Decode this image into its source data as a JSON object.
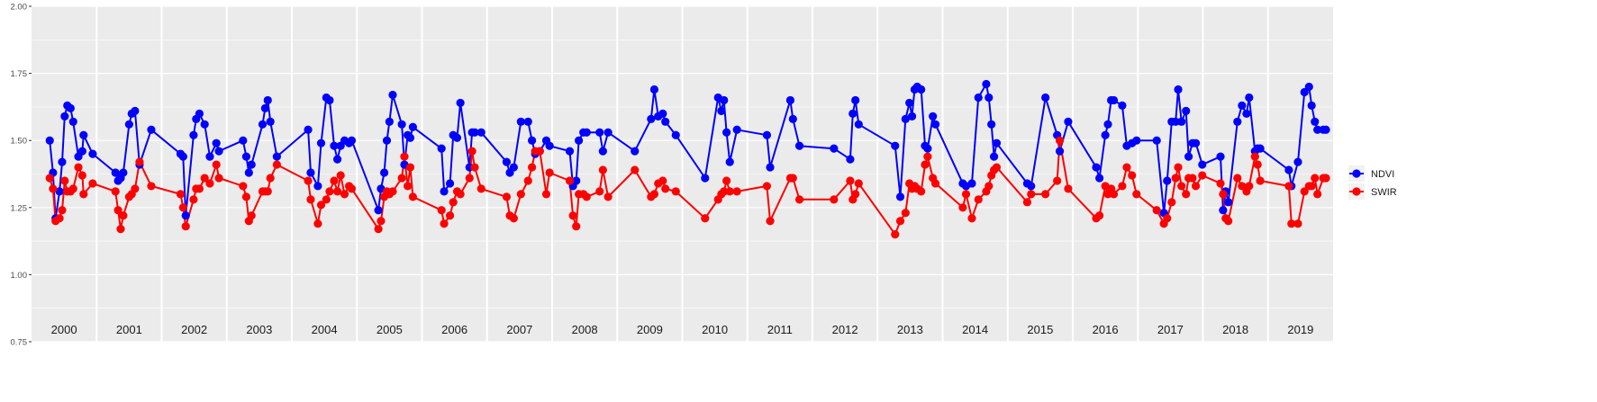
{
  "chart_data": {
    "type": "line",
    "title": "",
    "xlabel": "",
    "ylabel": "",
    "ylim": [
      0.75,
      2.0
    ],
    "yticks": [
      "0.75",
      "1.00",
      "1.25",
      "1.50",
      "1.75",
      "2.00"
    ],
    "years": [
      "2000",
      "2001",
      "2002",
      "2003",
      "2004",
      "2005",
      "2006",
      "2007",
      "2008",
      "2009",
      "2010",
      "2011",
      "2012",
      "2013",
      "2014",
      "2015",
      "2016",
      "2017",
      "2018",
      "2019"
    ],
    "grid": true,
    "legend_position": "right",
    "dates": [
      2000.28,
      2000.33,
      2000.37,
      2000.43,
      2000.47,
      2000.51,
      2000.55,
      2000.6,
      2000.64,
      2000.72,
      2000.78,
      2000.8,
      2000.94,
      2001.29,
      2001.33,
      2001.37,
      2001.41,
      2001.5,
      2001.54,
      2001.59,
      2001.66,
      2001.84,
      2002.29,
      2002.33,
      2002.37,
      2002.49,
      2002.53,
      2002.58,
      2002.66,
      2002.74,
      2002.84,
      2002.88,
      2003.25,
      2003.3,
      2003.34,
      2003.38,
      2003.55,
      2003.59,
      2003.63,
      2003.67,
      2003.77,
      2004.25,
      2004.29,
      2004.4,
      2004.45,
      2004.53,
      2004.58,
      2004.65,
      2004.7,
      2004.75,
      2004.81,
      2004.88,
      2004.92,
      2005.33,
      2005.37,
      2005.42,
      2005.46,
      2005.5,
      2005.55,
      2005.69,
      2005.73,
      2005.78,
      2005.82,
      2005.86,
      2006.3,
      2006.34,
      2006.43,
      2006.48,
      2006.54,
      2006.59,
      2006.73,
      2006.77,
      2006.81,
      2006.91,
      2007.3,
      2007.35,
      2007.41,
      2007.52,
      2007.63,
      2007.69,
      2007.74,
      2007.81,
      2007.91,
      2007.96,
      2008.27,
      2008.32,
      2008.37,
      2008.41,
      2008.48,
      2008.53,
      2008.73,
      2008.78,
      2008.86,
      2009.27,
      2009.52,
      2009.57,
      2009.63,
      2009.7,
      2009.74,
      2009.9,
      2010.35,
      2010.55,
      2010.6,
      2010.64,
      2010.68,
      2010.73,
      2010.84,
      2011.3,
      2011.35,
      2011.66,
      2011.7,
      2011.8,
      2012.33,
      2012.58,
      2012.62,
      2012.66,
      2012.71,
      2013.27,
      2013.35,
      2013.43,
      2013.49,
      2013.53,
      2013.57,
      2013.61,
      2013.67,
      2013.73,
      2013.77,
      2013.85,
      2013.89,
      2014.31,
      2014.36,
      2014.45,
      2014.55,
      2014.67,
      2014.71,
      2014.75,
      2014.79,
      2014.83,
      2015.3,
      2015.36,
      2015.58,
      2015.76,
      2015.8,
      2015.93,
      2016.36,
      2016.41,
      2016.5,
      2016.54,
      2016.59,
      2016.63,
      2016.76,
      2016.83,
      2016.91,
      2016.98,
      2017.29,
      2017.4,
      2017.45,
      2017.52,
      2017.58,
      2017.62,
      2017.67,
      2017.74,
      2017.78,
      2017.84,
      2017.89,
      2017.99,
      2018.27,
      2018.31,
      2018.35,
      2018.39,
      2018.53,
      2018.6,
      2018.67,
      2018.71,
      2018.8,
      2018.84,
      2018.88,
      2019.32,
      2019.36,
      2019.46,
      2019.56,
      2019.63,
      2019.67,
      2019.72,
      2019.76,
      2019.85,
      2019.89
    ],
    "series": [
      {
        "name": "NDVI",
        "color": "#0000FF",
        "values": [
          1.5,
          1.38,
          1.21,
          1.31,
          1.42,
          1.59,
          1.63,
          1.62,
          1.57,
          1.44,
          1.46,
          1.52,
          1.45,
          1.38,
          1.35,
          1.36,
          1.38,
          1.56,
          1.6,
          1.61,
          1.41,
          1.54,
          1.45,
          1.44,
          1.22,
          1.52,
          1.58,
          1.6,
          1.56,
          1.44,
          1.49,
          1.46,
          1.5,
          1.44,
          1.38,
          1.41,
          1.56,
          1.62,
          1.65,
          1.57,
          1.44,
          1.54,
          1.38,
          1.33,
          1.49,
          1.66,
          1.65,
          1.48,
          1.43,
          1.48,
          1.5,
          1.49,
          1.5,
          1.24,
          1.32,
          1.38,
          1.5,
          1.57,
          1.67,
          1.56,
          1.41,
          1.52,
          1.51,
          1.55,
          1.47,
          1.31,
          1.34,
          1.52,
          1.51,
          1.64,
          1.4,
          1.53,
          1.53,
          1.53,
          1.42,
          1.38,
          1.4,
          1.57,
          1.57,
          1.5,
          1.45,
          1.46,
          1.5,
          1.48,
          1.46,
          1.33,
          1.35,
          1.5,
          1.53,
          1.53,
          1.53,
          1.46,
          1.53,
          1.46,
          1.58,
          1.69,
          1.59,
          1.6,
          1.57,
          1.52,
          1.36,
          1.66,
          1.61,
          1.65,
          1.53,
          1.42,
          1.54,
          1.52,
          1.4,
          1.65,
          1.58,
          1.48,
          1.47,
          1.43,
          1.6,
          1.65,
          1.56,
          1.48,
          1.29,
          1.58,
          1.64,
          1.59,
          1.69,
          1.7,
          1.69,
          1.48,
          1.47,
          1.59,
          1.56,
          1.34,
          1.33,
          1.34,
          1.66,
          1.71,
          1.66,
          1.56,
          1.44,
          1.49,
          1.34,
          1.33,
          1.66,
          1.52,
          1.46,
          1.57,
          1.4,
          1.36,
          1.52,
          1.56,
          1.65,
          1.65,
          1.63,
          1.48,
          1.49,
          1.5,
          1.5,
          1.23,
          1.35,
          1.57,
          1.57,
          1.69,
          1.57,
          1.61,
          1.44,
          1.49,
          1.49,
          1.41,
          1.44,
          1.24,
          1.31,
          1.27,
          1.57,
          1.63,
          1.6,
          1.66,
          1.46,
          1.47,
          1.47,
          1.39,
          1.33,
          1.42,
          1.68,
          1.7,
          1.63,
          1.57,
          1.54,
          1.54,
          1.54
        ]
      },
      {
        "name": "SWIR",
        "color": "#FF0000",
        "values": [
          1.36,
          1.32,
          1.2,
          1.21,
          1.24,
          1.35,
          1.31,
          1.31,
          1.32,
          1.4,
          1.37,
          1.3,
          1.34,
          1.31,
          1.24,
          1.17,
          1.22,
          1.29,
          1.3,
          1.32,
          1.42,
          1.33,
          1.3,
          1.25,
          1.18,
          1.28,
          1.32,
          1.32,
          1.36,
          1.34,
          1.41,
          1.36,
          1.33,
          1.29,
          1.2,
          1.22,
          1.31,
          1.31,
          1.31,
          1.36,
          1.41,
          1.35,
          1.28,
          1.19,
          1.26,
          1.28,
          1.31,
          1.35,
          1.31,
          1.37,
          1.3,
          1.33,
          1.32,
          1.17,
          1.2,
          1.29,
          1.31,
          1.3,
          1.31,
          1.36,
          1.44,
          1.33,
          1.4,
          1.29,
          1.24,
          1.19,
          1.22,
          1.27,
          1.31,
          1.3,
          1.36,
          1.46,
          1.4,
          1.32,
          1.29,
          1.22,
          1.21,
          1.3,
          1.35,
          1.4,
          1.46,
          1.46,
          1.3,
          1.38,
          1.35,
          1.22,
          1.18,
          1.3,
          1.3,
          1.29,
          1.31,
          1.39,
          1.29,
          1.39,
          1.29,
          1.3,
          1.34,
          1.35,
          1.32,
          1.31,
          1.21,
          1.28,
          1.3,
          1.31,
          1.35,
          1.31,
          1.31,
          1.33,
          1.2,
          1.36,
          1.36,
          1.28,
          1.28,
          1.35,
          1.28,
          1.3,
          1.34,
          1.15,
          1.2,
          1.23,
          1.34,
          1.32,
          1.33,
          1.32,
          1.31,
          1.41,
          1.44,
          1.36,
          1.34,
          1.25,
          1.3,
          1.21,
          1.28,
          1.31,
          1.33,
          1.37,
          1.39,
          1.4,
          1.27,
          1.3,
          1.3,
          1.35,
          1.5,
          1.32,
          1.21,
          1.22,
          1.33,
          1.3,
          1.32,
          1.3,
          1.33,
          1.4,
          1.37,
          1.3,
          1.24,
          1.19,
          1.21,
          1.27,
          1.36,
          1.4,
          1.33,
          1.3,
          1.36,
          1.36,
          1.33,
          1.37,
          1.34,
          1.3,
          1.21,
          1.2,
          1.36,
          1.33,
          1.31,
          1.33,
          1.44,
          1.41,
          1.35,
          1.33,
          1.19,
          1.19,
          1.31,
          1.33,
          1.33,
          1.36,
          1.3,
          1.36,
          1.36
        ]
      }
    ]
  }
}
